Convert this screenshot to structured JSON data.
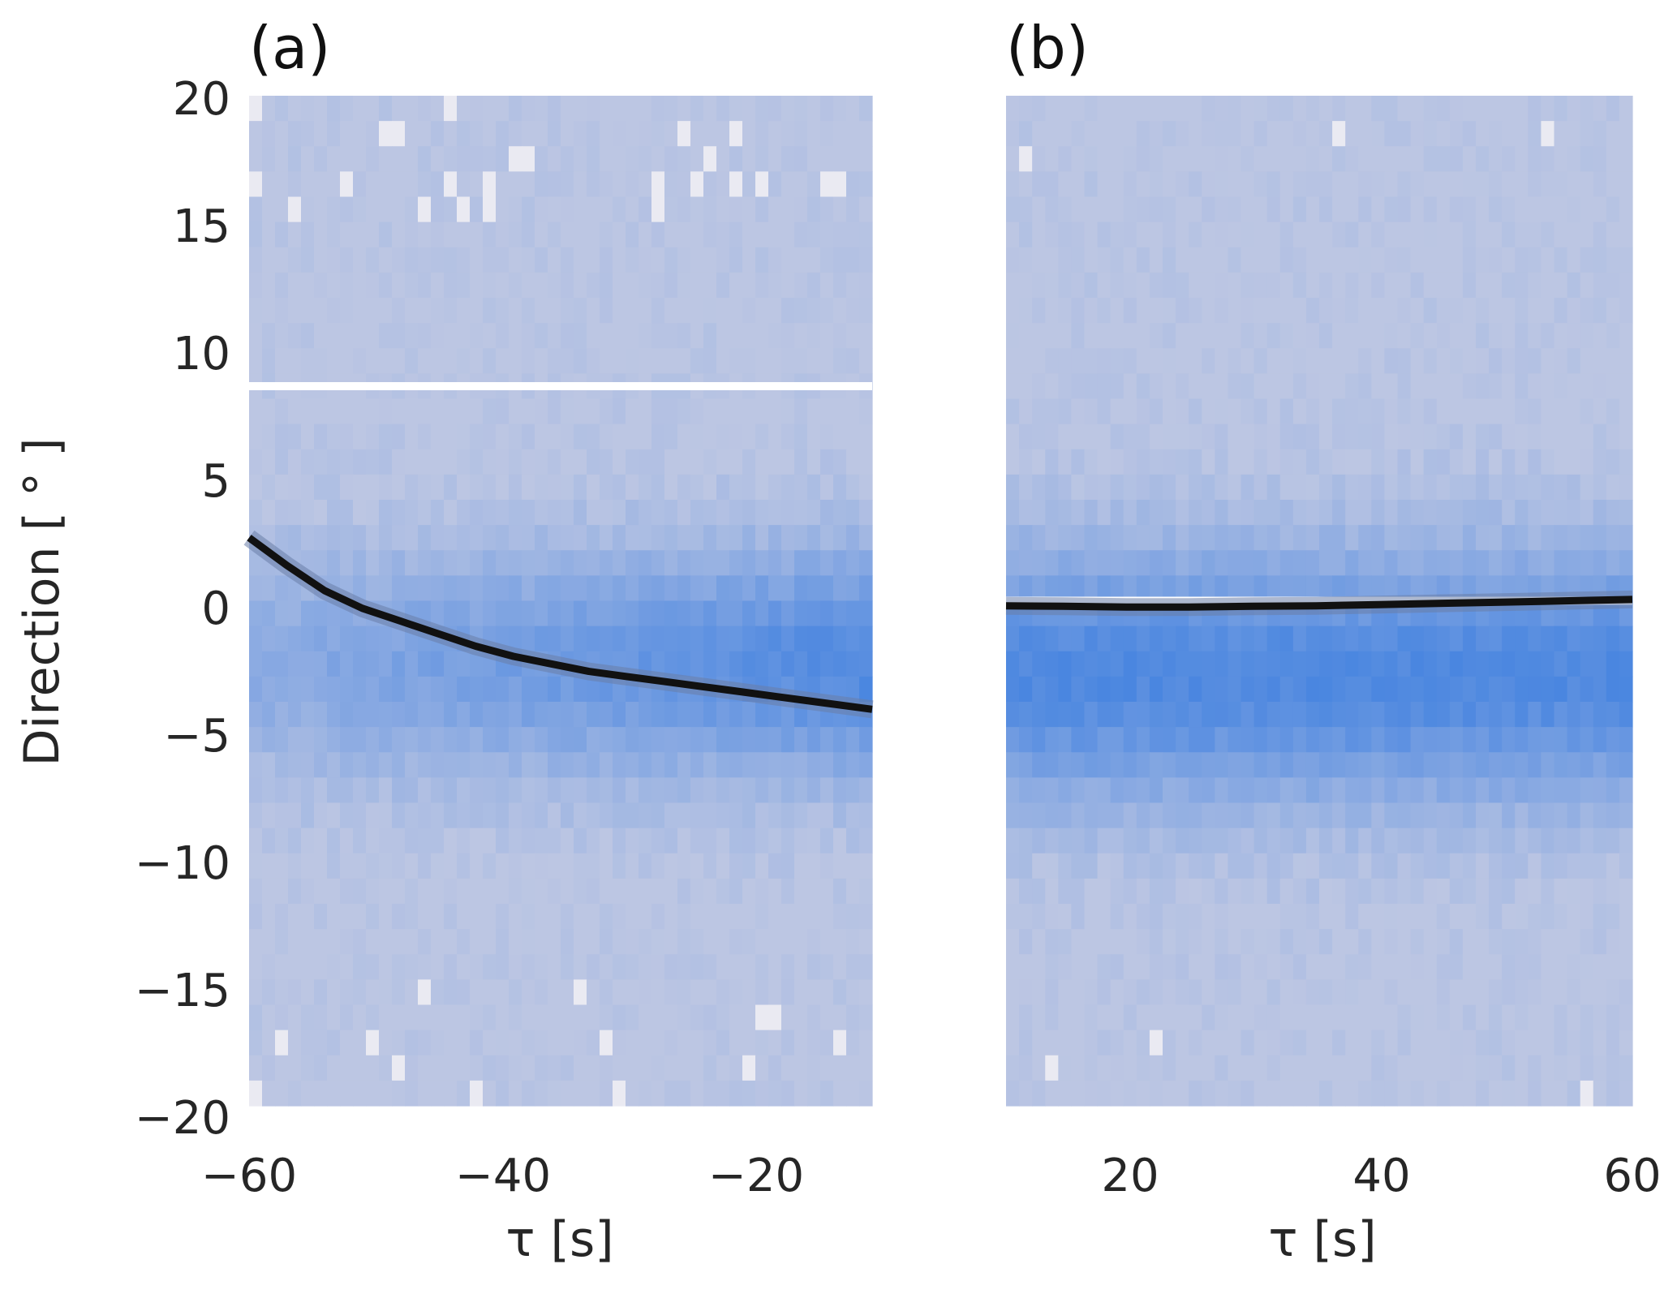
{
  "figure": {
    "ylabel": "Direction [ ° ]",
    "colors": {
      "heat_low": "#bcc6e3",
      "heat_high": "#4a86e0",
      "empty_cell": "#eaeaf2",
      "mean_line": "#111111",
      "band": "#6a7ea8",
      "gap_line": "#ffffff"
    }
  },
  "panels": [
    {
      "label": "(a)",
      "xlabel": "τ [s]",
      "xticks": [
        "−60",
        "−40",
        "−20"
      ],
      "yticks": [
        "20",
        "15",
        "10",
        "5",
        "0",
        "−5",
        "−10",
        "−15",
        "−20"
      ]
    },
    {
      "label": "(b)",
      "xlabel": "τ [s]",
      "xticks": [
        "20",
        "40",
        "60"
      ]
    }
  ],
  "chart_data": [
    {
      "type": "heatmap",
      "title": "(a)",
      "xlabel": "τ [s]",
      "ylabel": "Direction [ ° ]",
      "xlim": [
        -60,
        -10.5
      ],
      "ylim": [
        -20,
        20
      ],
      "xticks": [
        -60,
        -40,
        -20
      ],
      "yticks": [
        -20,
        -15,
        -10,
        -5,
        0,
        5,
        10,
        15,
        20
      ],
      "grid": false,
      "cmap": [
        "#bcc6e3",
        "#4a86e0"
      ],
      "density_peak_direction": -2.5,
      "horizontal_gap_at": 8.5,
      "mean_line": {
        "x": [
          -60,
          -57,
          -54,
          -51,
          -48,
          -45,
          -42,
          -39,
          -36,
          -33,
          -30,
          -27,
          -24,
          -21,
          -18,
          -15,
          -12,
          -10.5
        ],
        "y": [
          2.5,
          1.4,
          0.4,
          -0.3,
          -0.8,
          -1.3,
          -1.8,
          -2.2,
          -2.5,
          -2.8,
          -3.0,
          -3.2,
          -3.4,
          -3.6,
          -3.8,
          -4.0,
          -4.2,
          -4.3
        ]
      }
    },
    {
      "type": "heatmap",
      "title": "(b)",
      "xlabel": "τ [s]",
      "xlim": [
        10.5,
        60
      ],
      "ylim": [
        -20,
        20
      ],
      "xticks": [
        20,
        40,
        60
      ],
      "grid": false,
      "cmap": [
        "#bcc6e3",
        "#4a86e0"
      ],
      "density_peak_direction": -3.0,
      "horizontal_gap_at": 0.0,
      "mean_line": {
        "x": [
          10.5,
          15,
          20,
          25,
          30,
          35,
          40,
          45,
          50,
          55,
          60
        ],
        "y": [
          -0.2,
          -0.22,
          -0.25,
          -0.25,
          -0.22,
          -0.2,
          -0.15,
          -0.1,
          -0.05,
          0.0,
          0.05
        ]
      }
    }
  ]
}
